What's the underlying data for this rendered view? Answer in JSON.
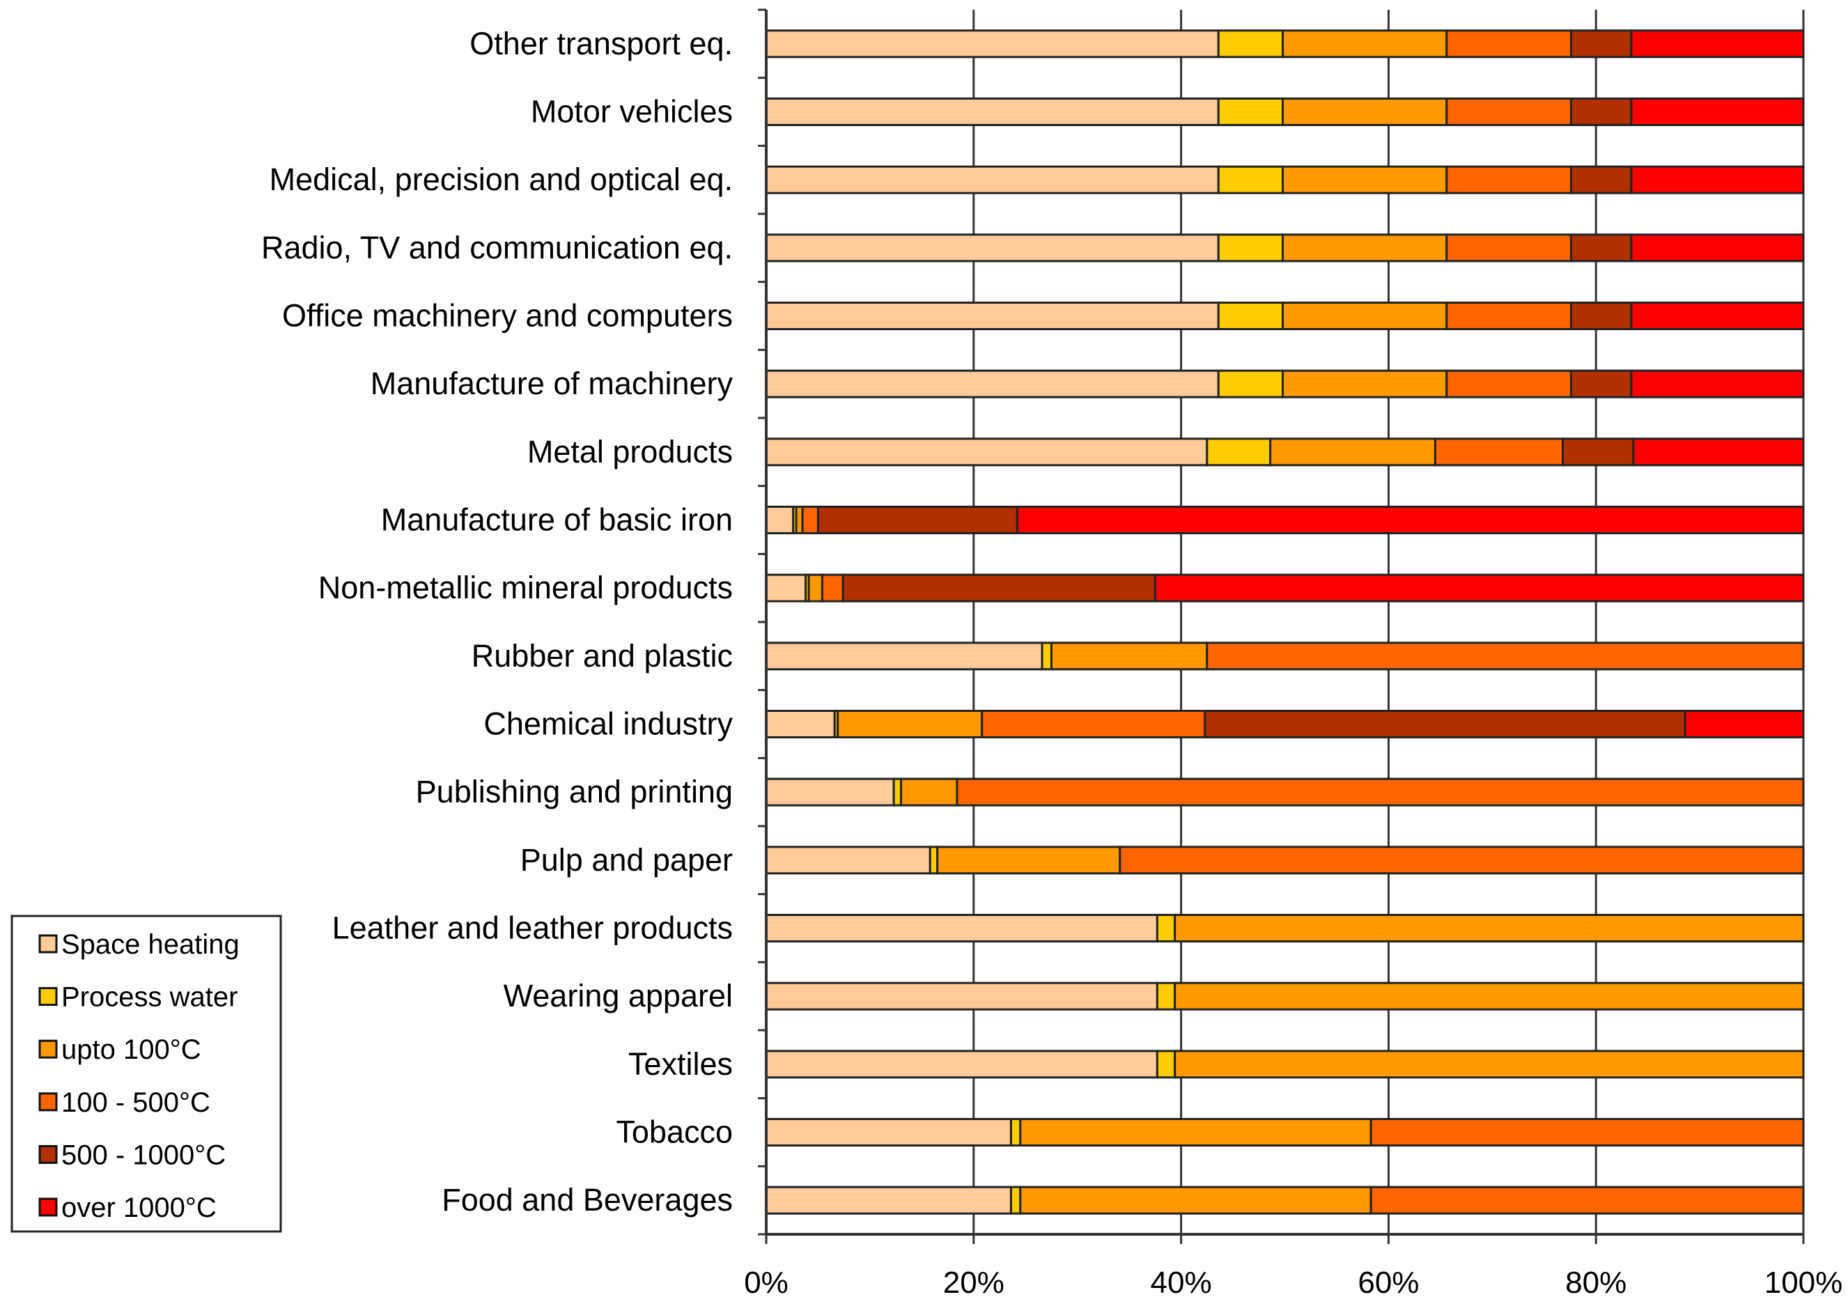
{
  "chart_data": {
    "type": "bar",
    "orientation": "horizontal",
    "stacked": "percent",
    "title": "",
    "xlabel": "",
    "ylabel": "",
    "xlim": [
      0,
      100
    ],
    "x_ticks": [
      "0%",
      "20%",
      "40%",
      "60%",
      "80%",
      "100%"
    ],
    "grid": "vertical",
    "legend_position": "bottom-left",
    "categories": [
      "Other transport eq.",
      "Motor vehicles",
      "Medical, precision and optical eq.",
      "Radio, TV and communication eq.",
      "Office machinery and computers",
      "Manufacture of machinery",
      "Metal products",
      "Manufacture of basic iron",
      "Non-metallic mineral products",
      "Rubber and plastic",
      "Chemical industry",
      "Publishing and printing",
      "Pulp and paper",
      "Leather and leather products",
      "Wearing apparel",
      "Textiles",
      "Tobacco",
      "Food and Beverages"
    ],
    "series": [
      {
        "name": "Space heating",
        "color": "#FFCC99",
        "values": [
          43.6,
          43.6,
          43.6,
          43.6,
          43.6,
          43.6,
          42.5,
          2.6,
          3.8,
          26.6,
          6.6,
          12.3,
          15.8,
          37.7,
          37.7,
          37.7,
          23.6,
          23.6
        ]
      },
      {
        "name": "Process water",
        "color": "#FFCC00",
        "values": [
          6.2,
          6.2,
          6.2,
          6.2,
          6.2,
          6.2,
          6.1,
          0.3,
          0.3,
          0.9,
          0.3,
          0.7,
          0.7,
          1.7,
          1.7,
          1.7,
          0.9,
          0.9
        ]
      },
      {
        "name": "upto 100°C",
        "color": "#FF9900",
        "values": [
          15.8,
          15.8,
          15.8,
          15.8,
          15.8,
          15.8,
          15.9,
          0.6,
          1.3,
          15.0,
          13.9,
          5.4,
          17.6,
          60.6,
          60.6,
          60.6,
          33.8,
          33.8
        ]
      },
      {
        "name": "100 - 500°C",
        "color": "#FF6600",
        "values": [
          12.0,
          12.0,
          12.0,
          12.0,
          12.0,
          12.0,
          12.3,
          1.5,
          2.0,
          57.5,
          21.5,
          81.6,
          65.9,
          0,
          0,
          0,
          41.7,
          41.7
        ]
      },
      {
        "name": "500 - 1000°C",
        "color": "#B03000",
        "values": [
          5.8,
          5.8,
          5.8,
          5.8,
          5.8,
          5.8,
          6.8,
          19.2,
          30.1,
          0,
          46.3,
          0,
          0,
          0,
          0,
          0,
          0,
          0
        ]
      },
      {
        "name": "over 1000°C",
        "color": "#FF0000",
        "values": [
          16.6,
          16.6,
          16.6,
          16.6,
          16.6,
          16.6,
          16.4,
          75.8,
          62.5,
          0,
          11.4,
          0,
          0,
          0,
          0,
          0,
          0,
          0
        ]
      }
    ]
  }
}
